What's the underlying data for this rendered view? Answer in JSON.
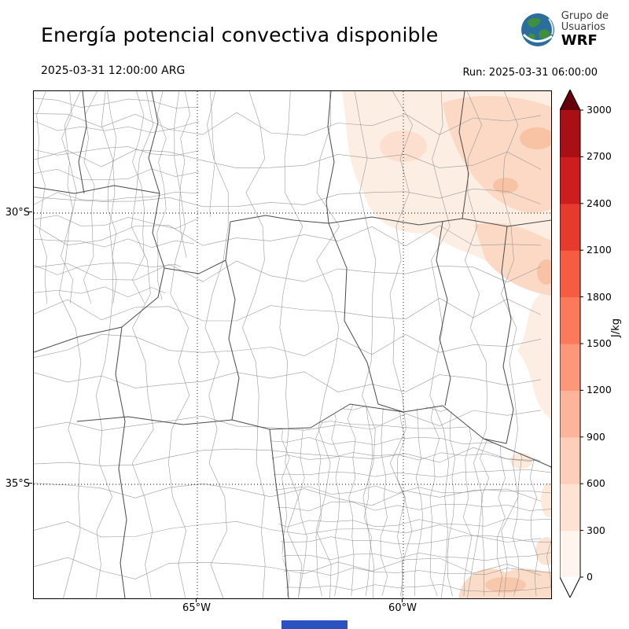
{
  "header": {
    "title": "Energía potencial convectiva disponible",
    "logo": {
      "line1": "Grupo de",
      "line2": "Usuarios",
      "line3": "WRF"
    },
    "valid_time": "2025-03-31 12:00:00 ARG",
    "run_label": "Run: 2025-03-31 06:00:00"
  },
  "map": {
    "lat_labels": [
      "30°S",
      "35°S"
    ],
    "lon_labels": [
      "65°W",
      "60°W"
    ]
  },
  "colorbar": {
    "unit": "J/kg",
    "ticks": [
      0,
      300,
      600,
      900,
      1200,
      1500,
      1800,
      2100,
      2400,
      2700,
      3000
    ],
    "segment_colors_bottom_to_top": [
      "#fff4ee",
      "#fee3d4",
      "#fdcfba",
      "#fcb59b",
      "#fc977a",
      "#fb7a5c",
      "#f55c41",
      "#e73a2e",
      "#cd1d1f",
      "#a81016"
    ],
    "under_color": "#ffffff",
    "over_color": "#67000d"
  },
  "chart_data": {
    "type": "heatmap",
    "title": "Energía potencial convectiva disponible",
    "unit": "J/kg",
    "levels": [
      0,
      300,
      600,
      900,
      1200,
      1500,
      1800,
      2100,
      2400,
      2700,
      3000
    ],
    "visible_value_range": [
      0,
      900
    ],
    "regions": [
      {
        "area": "northeast of map",
        "approx_values_jkg": "100-900"
      },
      {
        "area": "southeast coastal corner",
        "approx_values_jkg": "100-600"
      },
      {
        "area": "center and west",
        "approx_values_jkg": "0"
      }
    ]
  },
  "footer": {
    "partial_logo_color": "#2a52c0"
  }
}
